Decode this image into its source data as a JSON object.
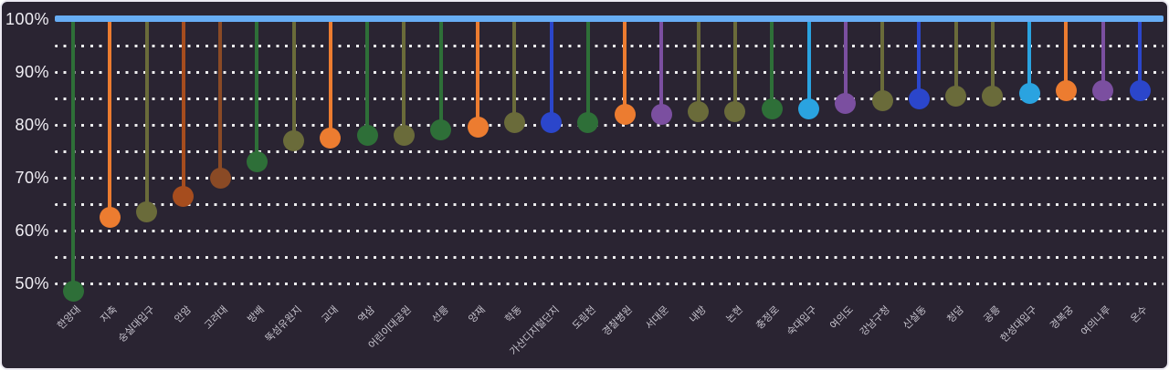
{
  "chart_data": {
    "type": "lollipop",
    "title": "",
    "orientation": "vertical-drop-from-100%",
    "baseline": {
      "value": 100,
      "color": "#67acf4"
    },
    "y_axis": {
      "tick_labels": [
        "100%",
        "90%",
        "80%",
        "70%",
        "60%",
        "50%"
      ],
      "tick_values": [
        100,
        90,
        80,
        70,
        60,
        50
      ],
      "min": 45,
      "max": 100,
      "gridline_step": 5,
      "grid_style": "dotted",
      "grid_on": true
    },
    "x_axis": {
      "label_rotation_deg": 45
    },
    "legend": "none",
    "colors": {
      "background": "#2a2432",
      "grid_dots": "#ffffff",
      "y_tick_text": "#f0eef4",
      "x_tick_text": "#c8c5cf",
      "baseline_bar": "#67acf4",
      "subway_line_1_blue": "#2b46cb",
      "subway_line_2_green": "#2e6f38",
      "subway_line_3_orange": "#ec7c30",
      "subway_line_4_cyan": "#2aa3e0",
      "subway_line_5_purple": "#7b4fa0",
      "subway_line_6_brown": "#8a4a25",
      "subway_line_6_rust": "#a64d1e",
      "subway_line_7_olive": "#6a6b3a"
    },
    "points": [
      {
        "label": "한양대",
        "value": 48.5,
        "color": "#2e6f38"
      },
      {
        "label": "지축",
        "value": 62.5,
        "color": "#ec7c30"
      },
      {
        "label": "숭실대입구",
        "value": 63.5,
        "color": "#6a6b3a"
      },
      {
        "label": "안암",
        "value": 66.5,
        "color": "#a64d1e"
      },
      {
        "label": "고려대",
        "value": 70,
        "color": "#8a4a25"
      },
      {
        "label": "방배",
        "value": 73,
        "color": "#2e6f38"
      },
      {
        "label": "뚝섬유원지",
        "value": 77,
        "color": "#6a6b3a"
      },
      {
        "label": "교대",
        "value": 77.5,
        "color": "#ec7c30"
      },
      {
        "label": "역삼",
        "value": 78,
        "color": "#2e6f38"
      },
      {
        "label": "어린이대공원",
        "value": 78,
        "color": "#6a6b3a"
      },
      {
        "label": "선릉",
        "value": 79,
        "color": "#2e6f38"
      },
      {
        "label": "양재",
        "value": 79.5,
        "color": "#ec7c30"
      },
      {
        "label": "학동",
        "value": 80.5,
        "color": "#6a6b3a"
      },
      {
        "label": "가산디지털단지",
        "value": 80.5,
        "color": "#2b46cb"
      },
      {
        "label": "도림천",
        "value": 80.5,
        "color": "#2e6f38"
      },
      {
        "label": "경찰병원",
        "value": 82,
        "color": "#ec7c30"
      },
      {
        "label": "서대문",
        "value": 82,
        "color": "#7b4fa0"
      },
      {
        "label": "내방",
        "value": 82.5,
        "color": "#6a6b3a"
      },
      {
        "label": "논현",
        "value": 82.5,
        "color": "#6a6b3a"
      },
      {
        "label": "충정로",
        "value": 83,
        "color": "#2e6f38"
      },
      {
        "label": "숙대입구",
        "value": 83,
        "color": "#2aa3e0"
      },
      {
        "label": "여의도",
        "value": 84,
        "color": "#7b4fa0"
      },
      {
        "label": "강남구청",
        "value": 84.5,
        "color": "#6a6b3a"
      },
      {
        "label": "신설동",
        "value": 85,
        "color": "#2b46cb"
      },
      {
        "label": "청담",
        "value": 85.5,
        "color": "#6a6b3a"
      },
      {
        "label": "공릉",
        "value": 85.5,
        "color": "#6a6b3a"
      },
      {
        "label": "한성대입구",
        "value": 86,
        "color": "#2aa3e0"
      },
      {
        "label": "경복궁",
        "value": 86.5,
        "color": "#ec7c30"
      },
      {
        "label": "여의나루",
        "value": 86.5,
        "color": "#7b4fa0"
      },
      {
        "label": "온수",
        "value": 86.5,
        "color": "#2b46cb"
      }
    ]
  }
}
